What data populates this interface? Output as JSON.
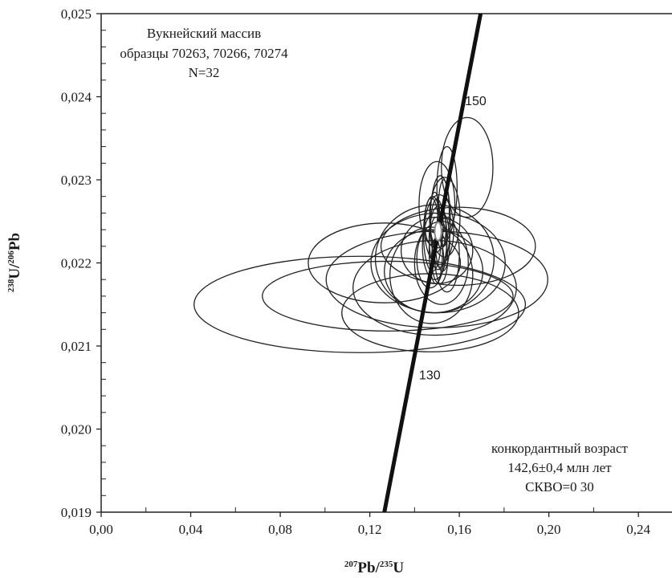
{
  "chart_data": {
    "type": "scatter",
    "title": "",
    "xlabel": {
      "sup1": "207",
      "base1": "Pb/",
      "sup2": "235",
      "base2": "U"
    },
    "ylabel": {
      "sup1": "238",
      "base1": "U/",
      "sup2": "206",
      "base2": "Pb"
    },
    "xlim": [
      0.0,
      0.255
    ],
    "ylim": [
      0.019,
      0.025
    ],
    "x_ticks": [
      "0,00",
      "0,04",
      "0,08",
      "0,12",
      "0,16",
      "0,20",
      "0,24"
    ],
    "x_tick_values": [
      0.0,
      0.04,
      0.08,
      0.12,
      0.16,
      0.2,
      0.24
    ],
    "y_ticks": [
      "0,019",
      "0,020",
      "0,021",
      "0,022",
      "0,023",
      "0,024",
      "0,025"
    ],
    "y_tick_values": [
      0.019,
      0.02,
      0.021,
      0.022,
      0.023,
      0.024,
      0.025
    ],
    "annotations": {
      "massif": "Вукнейский массив",
      "samples": "образцы 70263, 70266, 70274",
      "n": "N=32",
      "concordia_label": "конкордантный возраст",
      "age": "142,6±0,4 млн лет",
      "mswd": "СКВО=0 30"
    },
    "concordia": {
      "points": [
        [
          0.1265,
          0.019
        ],
        [
          0.1695,
          0.025
        ]
      ],
      "age_marks": [
        {
          "label": "150",
          "x": 0.1625,
          "y": 0.0239
        },
        {
          "label": "130",
          "x": 0.142,
          "y": 0.0206
        }
      ]
    },
    "concordia_age_ellipse": {
      "cx": 0.1505,
      "cy": 0.02238,
      "rx": 0.0008,
      "ry": 9e-05
    },
    "error_ellipses": [
      {
        "cx": 0.1155,
        "cy": 0.0215,
        "rx": 0.074,
        "ry": 0.00058
      },
      {
        "cx": 0.128,
        "cy": 0.0216,
        "rx": 0.056,
        "ry": 0.00042
      },
      {
        "cx": 0.15,
        "cy": 0.0218,
        "rx": 0.0495,
        "ry": 0.00058
      },
      {
        "cx": 0.149,
        "cy": 0.0217,
        "rx": 0.0365,
        "ry": 0.00057
      },
      {
        "cx": 0.147,
        "cy": 0.0214,
        "rx": 0.0395,
        "ry": 0.00047
      },
      {
        "cx": 0.1265,
        "cy": 0.022,
        "rx": 0.034,
        "ry": 0.00048
      },
      {
        "cx": 0.1595,
        "cy": 0.0222,
        "rx": 0.0345,
        "ry": 0.00047
      },
      {
        "cx": 0.1505,
        "cy": 0.022,
        "rx": 0.03,
        "ry": 0.0006
      },
      {
        "cx": 0.149,
        "cy": 0.02205,
        "rx": 0.0265,
        "ry": 0.00065
      },
      {
        "cx": 0.1485,
        "cy": 0.0219,
        "rx": 0.022,
        "ry": 0.0005
      },
      {
        "cx": 0.1475,
        "cy": 0.02185,
        "rx": 0.0185,
        "ry": 0.00058
      },
      {
        "cx": 0.15,
        "cy": 0.02215,
        "rx": 0.016,
        "ry": 0.0004
      },
      {
        "cx": 0.152,
        "cy": 0.022,
        "rx": 0.012,
        "ry": 0.0005
      },
      {
        "cx": 0.1635,
        "cy": 0.02315,
        "rx": 0.0115,
        "ry": 0.0006
      },
      {
        "cx": 0.1545,
        "cy": 0.0229,
        "rx": 0.0045,
        "ry": 0.0005
      },
      {
        "cx": 0.1535,
        "cy": 0.02255,
        "rx": 0.0068,
        "ry": 0.00048
      },
      {
        "cx": 0.15,
        "cy": 0.0227,
        "rx": 0.008,
        "ry": 0.00052
      },
      {
        "cx": 0.151,
        "cy": 0.0224,
        "rx": 0.0065,
        "ry": 0.00042
      },
      {
        "cx": 0.149,
        "cy": 0.0222,
        "rx": 0.0055,
        "ry": 0.0004
      },
      {
        "cx": 0.1515,
        "cy": 0.0225,
        "rx": 0.0045,
        "ry": 0.00055
      },
      {
        "cx": 0.1505,
        "cy": 0.0223,
        "rx": 0.004,
        "ry": 0.00038
      },
      {
        "cx": 0.148,
        "cy": 0.02235,
        "rx": 0.004,
        "ry": 0.00045
      },
      {
        "cx": 0.1525,
        "cy": 0.02225,
        "rx": 0.0032,
        "ry": 0.00035
      },
      {
        "cx": 0.15,
        "cy": 0.02245,
        "rx": 0.0028,
        "ry": 0.00032
      },
      {
        "cx": 0.1495,
        "cy": 0.02215,
        "rx": 0.003,
        "ry": 0.0004
      },
      {
        "cx": 0.153,
        "cy": 0.0226,
        "rx": 0.0025,
        "ry": 0.0004
      },
      {
        "cx": 0.1475,
        "cy": 0.0225,
        "rx": 0.003,
        "ry": 0.00028
      },
      {
        "cx": 0.1512,
        "cy": 0.02205,
        "rx": 0.0036,
        "ry": 0.0003
      },
      {
        "cx": 0.152,
        "cy": 0.02242,
        "rx": 0.002,
        "ry": 0.00025
      },
      {
        "cx": 0.149,
        "cy": 0.02255,
        "rx": 0.0022,
        "ry": 0.0003
      },
      {
        "cx": 0.1545,
        "cy": 0.0221,
        "rx": 0.0055,
        "ry": 0.00045
      },
      {
        "cx": 0.147,
        "cy": 0.02205,
        "rx": 0.006,
        "ry": 0.00035
      }
    ]
  }
}
